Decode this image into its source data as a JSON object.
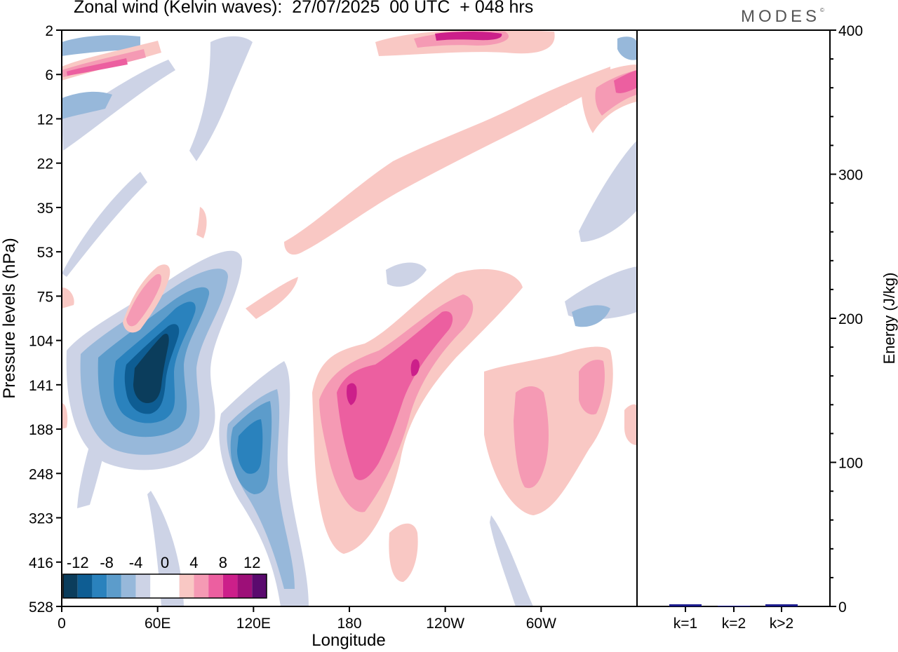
{
  "header": {
    "title": "Zonal wind (Kelvin waves):  27/07/2025  00 UTC  + 048 hrs",
    "brand": "MODES",
    "brand_mark": "©"
  },
  "chart_data": [
    {
      "type": "heatmap",
      "title": "Zonal wind (Kelvin waves)",
      "xlabel": "Longitude",
      "ylabel": "Pressure levels (hPa)",
      "x_ticks": [
        {
          "lon": 0,
          "label": "0"
        },
        {
          "lon": 60,
          "label": "60E"
        },
        {
          "lon": 120,
          "label": "120E"
        },
        {
          "lon": 180,
          "label": "180"
        },
        {
          "lon": 240,
          "label": "120W"
        },
        {
          "lon": 300,
          "label": "60W"
        }
      ],
      "xlim": [
        0,
        360
      ],
      "y_levels": [
        "2",
        "6",
        "12",
        "22",
        "35",
        "53",
        "75",
        "104",
        "141",
        "188",
        "248",
        "323",
        "416",
        "528"
      ],
      "colorbar": {
        "levels": [
          -14,
          -12,
          -10,
          -8,
          -6,
          -4,
          -2,
          2,
          4,
          6,
          8,
          10,
          12,
          14
        ],
        "labels": [
          "-12",
          "-8",
          "-4",
          "0",
          "4",
          "8",
          "12"
        ],
        "colors": [
          "#0b3d5c",
          "#0e5d93",
          "#2a82bd",
          "#5c9ccb",
          "#97b8da",
          "#cdd3e6",
          "#ffffff",
          "#ffffff",
          "#f9c8c4",
          "#f59ab4",
          "#ec5fa0",
          "#cc1f8a",
          "#9d0f78",
          "#5a0a6e"
        ]
      },
      "features": [
        {
          "name": "negative anomaly core",
          "lon": 53,
          "level": "104-141",
          "value": -14
        },
        {
          "name": "negative anomaly",
          "lon": 117,
          "level": "188",
          "value": -10
        },
        {
          "name": "positive anomaly core",
          "lon": 180,
          "level": "141",
          "value": 10
        },
        {
          "name": "positive anomaly core",
          "lon": 222,
          "level": "104",
          "value": 10
        },
        {
          "name": "positive anomaly",
          "lon": 295,
          "level": "188",
          "value": 6
        },
        {
          "name": "positive anomaly",
          "lon": 255,
          "level": "2",
          "value": 10
        },
        {
          "name": "positive anomaly",
          "lon": 355,
          "level": "6",
          "value": 10
        },
        {
          "name": "positive anomaly",
          "lon": 20,
          "level": "6",
          "value": 6
        }
      ]
    },
    {
      "type": "bar",
      "title": "",
      "xlabel": "",
      "ylabel": "Energy (J/kg)",
      "categories": [
        "k=1",
        "k=2",
        "k>2"
      ],
      "values": [
        1.5,
        0.5,
        1.5
      ],
      "ylim": [
        0,
        400
      ],
      "y_ticks": [
        0,
        100,
        200,
        300,
        400
      ],
      "bar_color": "#1a1a8c"
    }
  ]
}
